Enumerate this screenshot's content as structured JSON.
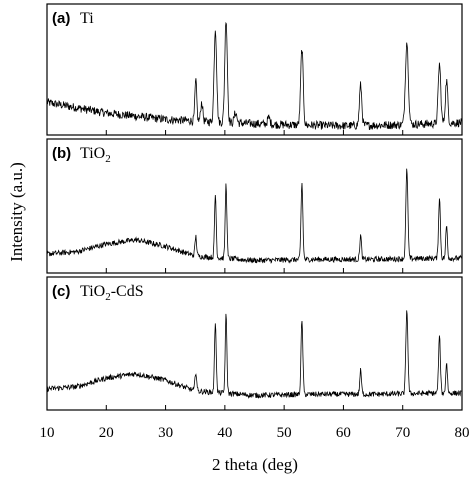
{
  "chart_data": {
    "type": "line",
    "xlabel": "2 theta (deg)",
    "ylabel": "Intensity (a.u.)",
    "xlim": [
      10,
      80
    ],
    "x_ticks": [
      10,
      20,
      30,
      40,
      50,
      60,
      70,
      80
    ],
    "line_color": "#000000",
    "panels": [
      {
        "label": "(a)",
        "name": "Ti",
        "subscript": "",
        "name_suffix": "",
        "background": [
          [
            10,
            25
          ],
          [
            20,
            15
          ],
          [
            30,
            9
          ],
          [
            40,
            6
          ],
          [
            50,
            4
          ],
          [
            60,
            3
          ],
          [
            70,
            4
          ],
          [
            80,
            6
          ]
        ],
        "noise": 4,
        "peaks": [
          {
            "x": 35.1,
            "h": 38,
            "w": 0.22
          },
          {
            "x": 36.1,
            "h": 18,
            "w": 0.25
          },
          {
            "x": 38.4,
            "h": 88,
            "w": 0.3
          },
          {
            "x": 40.2,
            "h": 98,
            "w": 0.3
          },
          {
            "x": 41.8,
            "h": 10,
            "w": 0.3
          },
          {
            "x": 47.4,
            "h": 6,
            "w": 0.3
          },
          {
            "x": 53.0,
            "h": 72,
            "w": 0.3
          },
          {
            "x": 62.9,
            "h": 38,
            "w": 0.28
          },
          {
            "x": 70.7,
            "h": 78,
            "w": 0.35
          },
          {
            "x": 76.2,
            "h": 56,
            "w": 0.3
          },
          {
            "x": 77.4,
            "h": 40,
            "w": 0.28
          }
        ]
      },
      {
        "label": "(b)",
        "name": "TiO",
        "subscript": "2",
        "name_suffix": "",
        "background": [
          [
            10,
            12
          ],
          [
            15,
            14
          ],
          [
            20,
            21
          ],
          [
            25,
            25
          ],
          [
            30,
            19
          ],
          [
            35,
            10
          ],
          [
            45,
            6
          ],
          [
            55,
            7
          ],
          [
            65,
            7
          ],
          [
            75,
            8
          ],
          [
            80,
            8
          ]
        ],
        "noise": 2.5,
        "peaks": [
          {
            "x": 35.1,
            "h": 18,
            "w": 0.2
          },
          {
            "x": 38.4,
            "h": 58,
            "w": 0.2
          },
          {
            "x": 40.2,
            "h": 68,
            "w": 0.2
          },
          {
            "x": 53.0,
            "h": 70,
            "w": 0.22
          },
          {
            "x": 62.9,
            "h": 22,
            "w": 0.2
          },
          {
            "x": 70.7,
            "h": 82,
            "w": 0.24
          },
          {
            "x": 76.2,
            "h": 55,
            "w": 0.22
          },
          {
            "x": 77.4,
            "h": 30,
            "w": 0.2
          }
        ]
      },
      {
        "label": "(c)",
        "name": "TiO",
        "subscript": "2",
        "name_suffix": "-CdS",
        "background": [
          [
            10,
            14
          ],
          [
            15,
            16
          ],
          [
            20,
            24
          ],
          [
            25,
            28
          ],
          [
            30,
            22
          ],
          [
            35,
            12
          ],
          [
            45,
            8
          ],
          [
            55,
            9
          ],
          [
            65,
            9
          ],
          [
            75,
            10
          ],
          [
            80,
            10
          ]
        ],
        "noise": 2.5,
        "peaks": [
          {
            "x": 35.1,
            "h": 18,
            "w": 0.2
          },
          {
            "x": 38.4,
            "h": 66,
            "w": 0.2
          },
          {
            "x": 40.2,
            "h": 72,
            "w": 0.2
          },
          {
            "x": 53.0,
            "h": 68,
            "w": 0.22
          },
          {
            "x": 62.9,
            "h": 22,
            "w": 0.2
          },
          {
            "x": 70.7,
            "h": 78,
            "w": 0.24
          },
          {
            "x": 76.2,
            "h": 52,
            "w": 0.22
          },
          {
            "x": 77.4,
            "h": 28,
            "w": 0.2
          }
        ]
      }
    ]
  }
}
